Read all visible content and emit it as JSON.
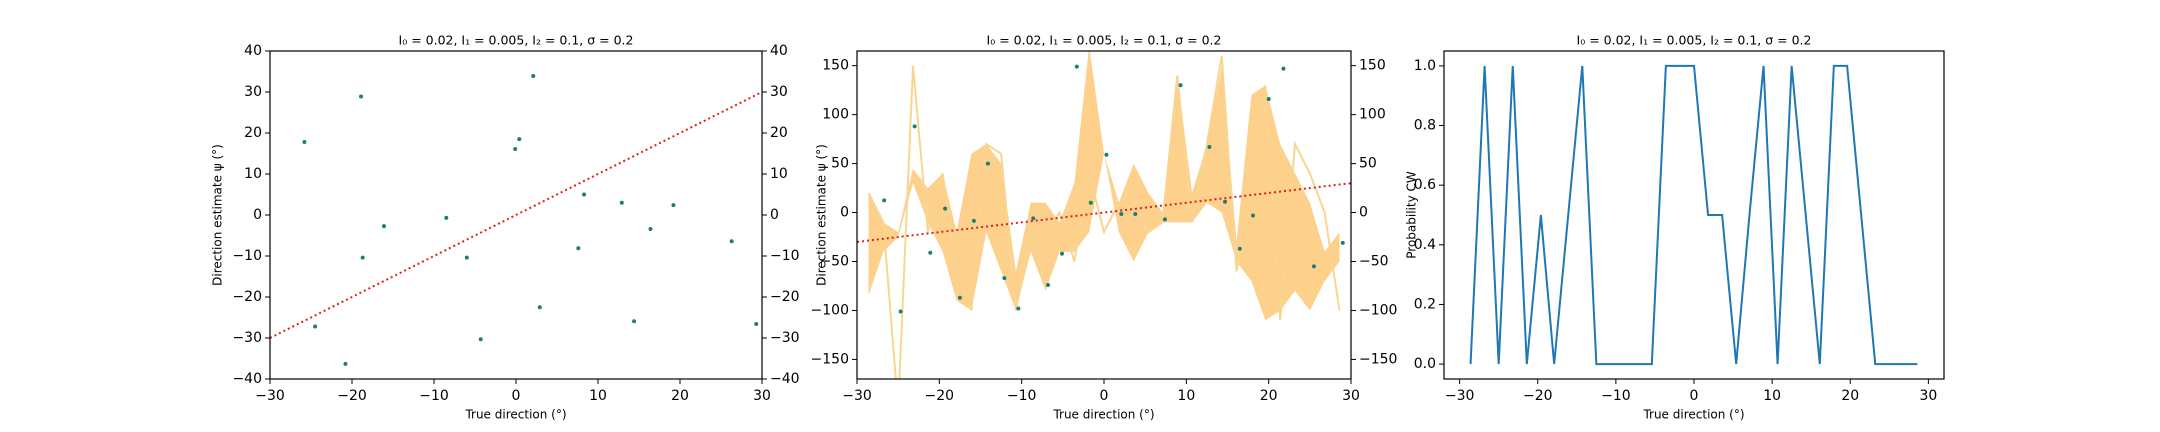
{
  "chart_data": [
    {
      "type": "scatter",
      "title": "I₀ = 0.02, I₁ = 0.005, I₂ = 0.1, σ = 0.2",
      "x_label": "True direction (°)",
      "y_label": "Direction estimate ψ (°)",
      "xlim": [
        -30,
        30
      ],
      "ylim": [
        -40,
        40
      ],
      "y2lim": [
        -40,
        40
      ],
      "xticks": [
        {
          "value": -30,
          "label": "−30"
        },
        {
          "value": -20,
          "label": "−20"
        },
        {
          "value": -10,
          "label": "−10"
        },
        0,
        10,
        20,
        30
      ],
      "yticks": [
        {
          "value": -40,
          "label": "−40"
        },
        {
          "value": -30,
          "label": "−30"
        },
        {
          "value": -20,
          "label": "−20"
        },
        {
          "value": -10,
          "label": "−10"
        },
        0,
        10,
        20,
        30,
        40
      ],
      "y2ticks": [
        {
          "value": -40,
          "label": "−40"
        },
        {
          "value": -30,
          "label": "−30"
        },
        {
          "value": -20,
          "label": "−20"
        },
        {
          "value": -10,
          "label": "−10"
        },
        0,
        10,
        20,
        30,
        40
      ],
      "series": [
        {
          "kind": "scatter",
          "color": "#1a7f7a",
          "x": [
            -25.8,
            -24.5,
            -18.9,
            -18.7,
            -20.8,
            -16.1,
            -8.5,
            -6.0,
            -4.3,
            -0.1,
            0.4,
            2.1,
            2.9,
            7.6,
            8.3,
            12.9,
            14.4,
            16.4,
            19.2,
            26.3,
            29.3
          ],
          "values": [
            17.8,
            -27.2,
            28.9,
            -10.4,
            -36.3,
            -2.7,
            -0.7,
            -10.4,
            -30.3,
            16.1,
            18.5,
            33.9,
            -22.5,
            -8.1,
            5.0,
            3.0,
            -25.9,
            -3.4,
            2.4,
            -6.4,
            -26.6
          ]
        },
        {
          "kind": "line",
          "style": "dotted",
          "color": "#e0201b",
          "x": [
            -30,
            30
          ],
          "values": [
            -30,
            30
          ]
        }
      ]
    },
    {
      "type": "scatter",
      "title": "I₀ = 0.02, I₁ = 0.005, I₂ = 0.1, σ = 0.2",
      "x_label": "True direction (°)",
      "y_label": "Direction estimate ψ (°)",
      "xlim": [
        -30,
        30
      ],
      "ylim": [
        -170,
        165
      ],
      "y2lim": [
        -170,
        165
      ],
      "xticks": [
        {
          "value": -30,
          "label": "−30"
        },
        {
          "value": -20,
          "label": "−20"
        },
        {
          "value": -10,
          "label": "−10"
        },
        0,
        10,
        20,
        30
      ],
      "yticks": [
        {
          "value": -150,
          "label": "−150"
        },
        {
          "value": -100,
          "label": "−100"
        },
        {
          "value": -50,
          "label": "−50"
        },
        0,
        50,
        100,
        150
      ],
      "y2ticks": [
        {
          "value": -150,
          "label": "−150"
        },
        {
          "value": -100,
          "label": "−100"
        },
        {
          "value": -50,
          "label": "−50"
        },
        0,
        50,
        100,
        150
      ],
      "series": [
        {
          "kind": "band",
          "color": "#fdd08c",
          "x": [
            -28.6,
            -26.8,
            -25.0,
            -23.2,
            -21.4,
            -19.6,
            -17.9,
            -16.1,
            -14.3,
            -12.5,
            -10.7,
            -8.9,
            -7.1,
            -5.4,
            -3.6,
            -1.8,
            0,
            1.8,
            3.6,
            5.4,
            7.1,
            8.9,
            10.7,
            12.5,
            14.3,
            16.1,
            17.9,
            19.6,
            21.4,
            23.2,
            25.0,
            26.8,
            28.6
          ],
          "lower": [
            -85,
            -40,
            -25,
            30,
            -10,
            -40,
            -90,
            -100,
            -20,
            -60,
            -100,
            -40,
            -80,
            -40,
            -40,
            -20,
            60,
            -20,
            -50,
            -20,
            -10,
            -10,
            -10,
            10,
            0,
            -50,
            -70,
            -110,
            -100,
            -80,
            -100,
            -70,
            -50
          ],
          "upper": [
            20,
            -10,
            -20,
            45,
            25,
            40,
            -20,
            60,
            70,
            50,
            -60,
            10,
            10,
            -10,
            30,
            170,
            60,
            10,
            50,
            20,
            0,
            140,
            20,
            70,
            150,
            -30,
            120,
            130,
            70,
            40,
            10,
            -40,
            -20
          ]
        },
        {
          "kind": "line",
          "color": "#f9d690",
          "x": [
            -28.6,
            -26.8,
            -25.0,
            -23.2,
            -21.4,
            -19.6,
            -17.9,
            -16.1,
            -14.3,
            -12.5,
            -10.7,
            -8.9,
            -7.1,
            -5.4,
            -3.6,
            -1.8,
            0,
            1.8,
            3.6,
            5.4,
            7.1,
            8.9,
            10.7,
            12.5,
            14.3,
            16.1,
            17.9,
            19.6,
            21.4,
            23.2,
            25.0,
            26.8,
            28.6
          ],
          "values": [
            20,
            -10,
            -200,
            150,
            -20,
            40,
            -60,
            -100,
            70,
            60,
            -100,
            -20,
            -20,
            0,
            -50,
            40,
            -20,
            10,
            0,
            -20,
            -10,
            140,
            -10,
            70,
            160,
            -60,
            20,
            130,
            -110,
            70,
            40,
            0,
            -100
          ]
        },
        {
          "kind": "scatter",
          "color": "#1a7f7a",
          "x": [
            -26.7,
            -24.7,
            -23.0,
            -21.1,
            -19.3,
            -17.5,
            -15.8,
            -14.1,
            -12.1,
            -10.4,
            -8.6,
            -6.8,
            -5.1,
            -3.3,
            -1.6,
            0.3,
            2.1,
            3.8,
            7.4,
            9.3,
            12.8,
            14.7,
            16.5,
            18.1,
            20.0,
            21.8,
            25.5,
            29.0
          ],
          "values": [
            12.5,
            -101,
            88,
            -41,
            4,
            -87,
            -8.5,
            50,
            -67,
            -98,
            -6,
            -74,
            -42,
            149,
            10,
            59,
            -1.5,
            -1.5,
            -7,
            130,
            67,
            11,
            -37,
            -3,
            116,
            147,
            -55,
            -31
          ]
        },
        {
          "kind": "line",
          "style": "dotted",
          "color": "#e0201b",
          "x": [
            -30,
            30
          ],
          "values": [
            -30,
            30
          ]
        }
      ]
    },
    {
      "type": "line",
      "title": "I₀ = 0.02, I₁ = 0.005, I₂ = 0.1, σ = 0.2",
      "x_label": "True direction (°)",
      "y_label": "Probability CW",
      "xlim": [
        -32,
        32
      ],
      "ylim": [
        -0.05,
        1.05
      ],
      "xticks": [
        {
          "value": -30,
          "label": "−30"
        },
        {
          "value": -20,
          "label": "−20"
        },
        {
          "value": -10,
          "label": "−10"
        },
        0,
        10,
        20,
        30
      ],
      "yticks": [
        {
          "value": 0,
          "label": "0.0"
        },
        0.2,
        0.4,
        0.6,
        0.8,
        {
          "value": 1,
          "label": "1.0"
        }
      ],
      "series": [
        {
          "kind": "line",
          "color": "#1f77b4",
          "x": [
            -28.6,
            -26.8,
            -25.0,
            -23.2,
            -21.4,
            -19.6,
            -17.9,
            -16.1,
            -14.3,
            -12.5,
            -10.7,
            -8.9,
            -7.1,
            -5.4,
            -3.6,
            -1.8,
            0,
            1.8,
            3.6,
            5.4,
            7.1,
            8.9,
            10.7,
            12.5,
            14.3,
            16.1,
            17.9,
            19.6,
            21.4,
            23.2,
            25.0,
            26.8,
            28.6
          ],
          "values": [
            0,
            1,
            0,
            1,
            0,
            0.5,
            0,
            0.5,
            1,
            0,
            0,
            0,
            0,
            0,
            1,
            1,
            1,
            0.5,
            0.5,
            0,
            0.5,
            1,
            0,
            1,
            0.5,
            0,
            1,
            1,
            0.5,
            0,
            0,
            0,
            0
          ]
        }
      ]
    }
  ]
}
